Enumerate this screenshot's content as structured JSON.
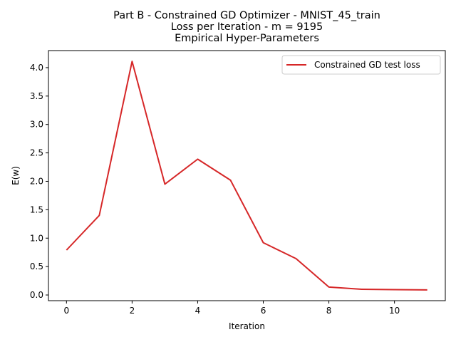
{
  "chart_data": {
    "type": "line",
    "title": [
      "Part B - Constrained GD Optimizer - MNIST_45_train",
      "Loss per Iteration - m = 9195",
      " Empirical Hyper-Parameters"
    ],
    "xlabel": "Iteration",
    "ylabel": "E(w)",
    "xlim": [
      -0.55,
      11.55
    ],
    "ylim": [
      -0.1,
      4.3
    ],
    "xticks": [
      0,
      2,
      4,
      6,
      8,
      10
    ],
    "xtick_labels": [
      "0",
      "2",
      "4",
      "6",
      "8",
      "10"
    ],
    "yticks": [
      0.0,
      0.5,
      1.0,
      1.5,
      2.0,
      2.5,
      3.0,
      3.5,
      4.0
    ],
    "ytick_labels": [
      "0.0",
      "0.5",
      "1.0",
      "1.5",
      "2.0",
      "2.5",
      "3.0",
      "3.5",
      "4.0"
    ],
    "grid": false,
    "legend_position": "top-right",
    "series": [
      {
        "name": "Constrained GD test loss",
        "color": "#d62728",
        "x": [
          0,
          1,
          2,
          3,
          4,
          5,
          6,
          7,
          8,
          9,
          10,
          11
        ],
        "y": [
          0.79,
          1.4,
          4.11,
          1.95,
          2.39,
          2.02,
          0.92,
          0.64,
          0.14,
          0.1,
          0.095,
          0.09
        ]
      }
    ]
  }
}
